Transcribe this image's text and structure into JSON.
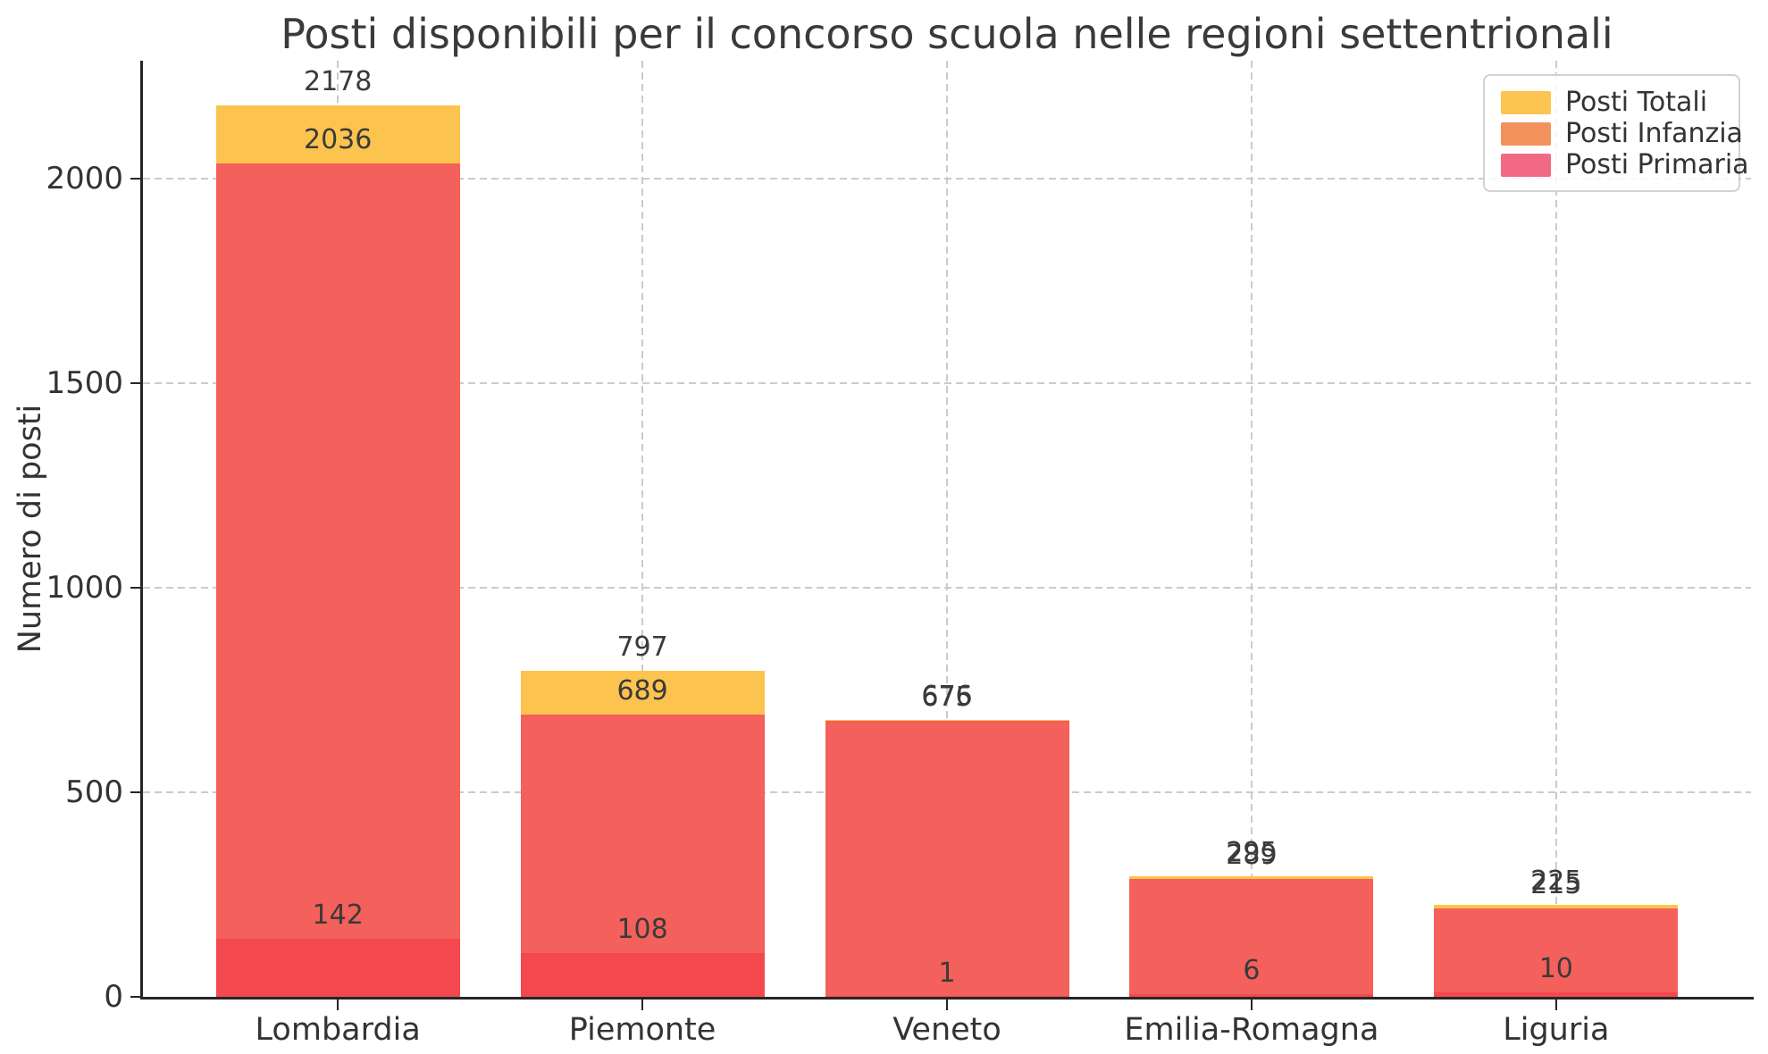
{
  "title": "Posti disponibili per il concorso scuola nelle regioni settentrionali",
  "ylabel": "Numero di posti",
  "legend": [
    {
      "label": "Posti Totali",
      "swatch": "#FBC54F"
    },
    {
      "label": "Posti Infanzia",
      "swatch": "#F1925D"
    },
    {
      "label": "Posti Primaria",
      "swatch": "#F26986"
    }
  ],
  "colors": {
    "background": "#ffffff",
    "text": "#3a3a3a",
    "grid": "#cbcbcb",
    "spine": "#262626",
    "bar_totali": "#FCC44E",
    "bar_infanzia": "#F4605B",
    "bar_primaria": "#F4484F"
  },
  "chart_data": {
    "type": "bar",
    "bar_style": "overlaid",
    "title": "Posti disponibili per il concorso scuola nelle regioni settentrionali",
    "xlabel": "",
    "ylabel": "Numero di posti",
    "categories": [
      "Lombardia",
      "Piemonte",
      "Veneto",
      "Emilia-Romagna",
      "Liguria"
    ],
    "series": [
      {
        "name": "Posti Totali",
        "color": "#FCC44E",
        "values": [
          2178,
          797,
          676,
          295,
          225
        ]
      },
      {
        "name": "Posti Infanzia",
        "color": "#F4605B",
        "values": [
          2036,
          689,
          675,
          289,
          215
        ]
      },
      {
        "name": "Posti Primaria",
        "color": "#F4484F",
        "values": [
          142,
          108,
          1,
          6,
          10
        ]
      }
    ],
    "yticks": [
      0,
      500,
      1000,
      1500,
      2000
    ],
    "ytick_labels": [
      "0",
      "500",
      "1000",
      "1500",
      "2000"
    ],
    "ylim": [
      0,
      2287
    ],
    "grid": true,
    "legend_position": "upper right"
  }
}
